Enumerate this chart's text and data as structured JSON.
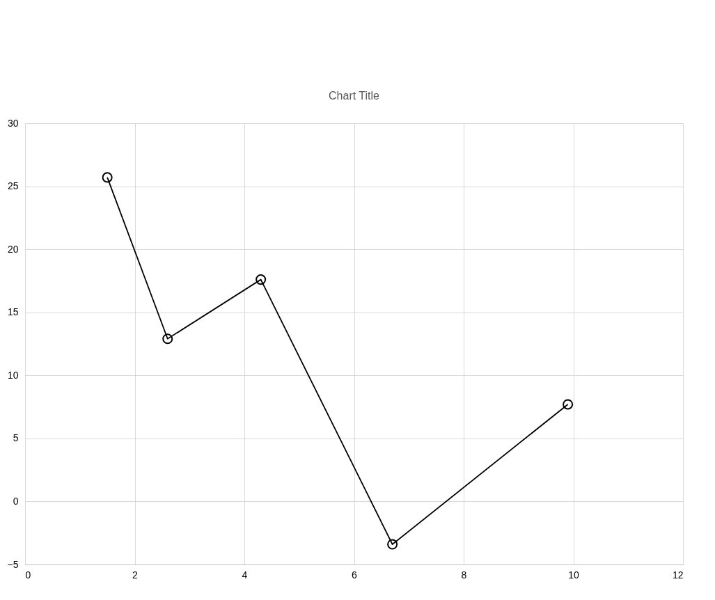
{
  "chart_data": {
    "type": "line",
    "title": "Chart Title",
    "x": [
      1.5,
      2.6,
      4.3,
      6.7,
      9.9
    ],
    "series": [
      {
        "color": "#000000",
        "values": [
          25.7,
          12.9,
          17.6,
          -3.4,
          7.7
        ]
      }
    ],
    "xlim": [
      0,
      12
    ],
    "xticks": [
      0,
      2,
      4,
      6,
      8,
      10,
      12
    ],
    "ylim": [
      -5,
      30
    ],
    "yticks": [
      -5,
      0,
      5,
      10,
      15,
      20,
      25,
      30
    ],
    "grid": true,
    "marker": "circle",
    "line_style": "solid"
  }
}
